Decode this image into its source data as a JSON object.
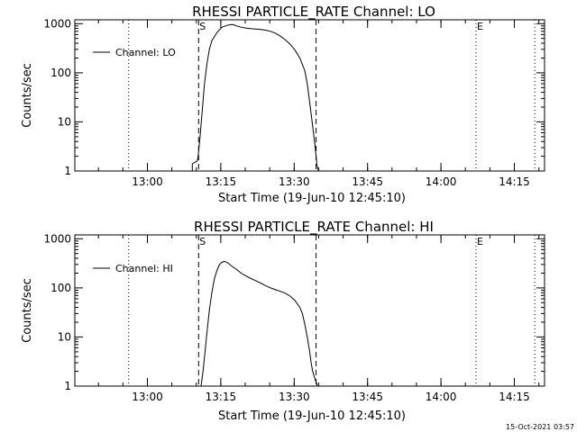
{
  "footer": {
    "timestamp": "15-Oct-2021 03:57"
  },
  "chart_data": [
    {
      "type": "line",
      "title": "RHESSI PARTICLE_RATE Channel: LO",
      "xlabel": "Start Time (19-Jun-10 12:45:10)",
      "ylabel": "Counts/sec",
      "xlim_minutes": [
        0,
        96
      ],
      "ylim": [
        1,
        1200
      ],
      "yscale": "log",
      "x_ticks": [
        {
          "minute": 14.83,
          "label": "13:00"
        },
        {
          "minute": 29.83,
          "label": "13:15"
        },
        {
          "minute": 44.83,
          "label": "13:30"
        },
        {
          "minute": 59.83,
          "label": "13:45"
        },
        {
          "minute": 74.83,
          "label": "14:00"
        },
        {
          "minute": 89.83,
          "label": "14:15"
        }
      ],
      "y_ticks": [
        {
          "value": 1,
          "label": "1"
        },
        {
          "value": 10,
          "label": "10"
        },
        {
          "value": 100,
          "label": "100"
        },
        {
          "value": 1000,
          "label": "1000"
        }
      ],
      "legend": {
        "label": "Channel: LO",
        "position": "top-left"
      },
      "markers": {
        "start": "S",
        "end": "E"
      },
      "vlines": [
        {
          "minute": 11.0,
          "style": "dotted"
        },
        {
          "minute": 25.3,
          "style": "dashed",
          "label": "S"
        },
        {
          "minute": 49.3,
          "style": "dashed"
        },
        {
          "minute": 82.0,
          "style": "dotted",
          "label": "E"
        },
        {
          "minute": 94.0,
          "style": "dotted"
        }
      ],
      "series": [
        {
          "name": "Channel: LO",
          "x": [
            24.0,
            24.0,
            25.0,
            25.2,
            25.6,
            26.0,
            26.5,
            27.0,
            27.5,
            28.0,
            29.0,
            30.0,
            31.0,
            32.0,
            32.5,
            33.0,
            34.0,
            35.0,
            36.0,
            37.0,
            38.0,
            39.0,
            40.0,
            41.0,
            42.0,
            43.0,
            44.0,
            45.0,
            46.0,
            47.0,
            47.5,
            48.0,
            48.5,
            49.0,
            49.3,
            49.5,
            49.8
          ],
          "y": [
            1.0,
            1.4,
            1.6,
            2.0,
            5.0,
            15.0,
            60.0,
            150.0,
            300.0,
            450.0,
            650.0,
            840.0,
            920.0,
            960.0,
            950.0,
            900.0,
            850.0,
            810.0,
            790.0,
            780.0,
            760.0,
            740.0,
            700.0,
            640.0,
            560.0,
            470.0,
            380.0,
            290.0,
            200.0,
            110.0,
            60.0,
            25.0,
            10.0,
            4.0,
            2.0,
            1.3,
            1.0
          ]
        }
      ]
    },
    {
      "type": "line",
      "title": "RHESSI PARTICLE_RATE Channel: HI",
      "xlabel": "Start Time (19-Jun-10 12:45:10)",
      "ylabel": "Counts/sec",
      "xlim_minutes": [
        0,
        96
      ],
      "ylim": [
        1,
        1200
      ],
      "yscale": "log",
      "x_ticks": [
        {
          "minute": 14.83,
          "label": "13:00"
        },
        {
          "minute": 29.83,
          "label": "13:15"
        },
        {
          "minute": 44.83,
          "label": "13:30"
        },
        {
          "minute": 59.83,
          "label": "13:45"
        },
        {
          "minute": 74.83,
          "label": "14:00"
        },
        {
          "minute": 89.83,
          "label": "14:15"
        }
      ],
      "y_ticks": [
        {
          "value": 1,
          "label": "1"
        },
        {
          "value": 10,
          "label": "10"
        },
        {
          "value": 100,
          "label": "100"
        },
        {
          "value": 1000,
          "label": "1000"
        }
      ],
      "legend": {
        "label": "Channel: HI",
        "position": "top-left"
      },
      "markers": {
        "start": "S",
        "end": "E"
      },
      "vlines": [
        {
          "minute": 11.0,
          "style": "dotted"
        },
        {
          "minute": 25.3,
          "style": "dashed",
          "label": "S"
        },
        {
          "minute": 49.3,
          "style": "dashed"
        },
        {
          "minute": 82.0,
          "style": "dotted",
          "label": "E"
        },
        {
          "minute": 94.0,
          "style": "dotted"
        }
      ],
      "series": [
        {
          "name": "Channel: HI",
          "x": [
            25.8,
            26.2,
            26.6,
            27.0,
            27.5,
            28.0,
            28.5,
            29.0,
            29.5,
            30.0,
            30.5,
            31.0,
            31.5,
            32.0,
            33.0,
            34.0,
            35.0,
            36.0,
            37.0,
            38.0,
            39.0,
            40.0,
            41.0,
            42.0,
            43.0,
            44.0,
            45.0,
            46.0,
            46.5,
            47.0,
            47.5,
            48.0,
            48.3,
            48.6,
            49.0,
            49.3,
            49.6
          ],
          "y": [
            1.0,
            2.0,
            5.0,
            12.0,
            35.0,
            80.0,
            150.0,
            220.0,
            290.0,
            330.0,
            345.0,
            335.0,
            310.0,
            280.0,
            240.0,
            200.0,
            175.0,
            155.0,
            140.0,
            125.0,
            110.0,
            100.0,
            92.0,
            85.0,
            78.0,
            68.0,
            55.0,
            40.0,
            30.0,
            18.0,
            10.0,
            5.0,
            3.0,
            2.0,
            1.5,
            1.2,
            1.0
          ]
        }
      ]
    }
  ]
}
